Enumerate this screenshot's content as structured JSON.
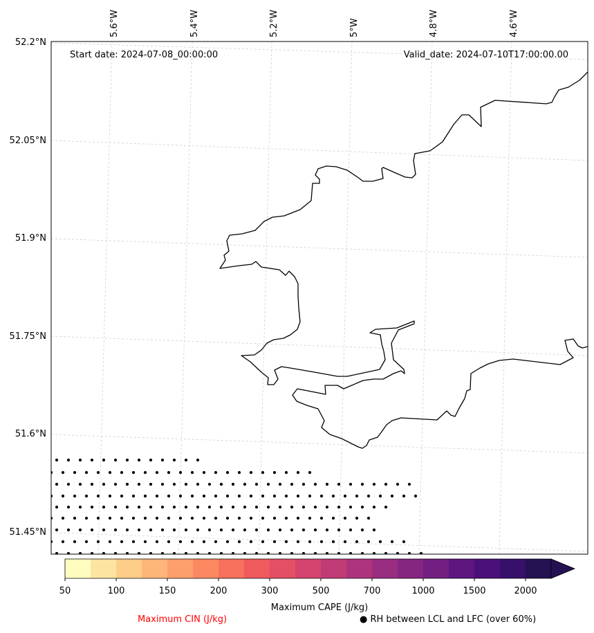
{
  "header": {
    "start_date": "Start date: 2024-07-08_00:00:00",
    "valid_date": "Valid_date: 2024-07-10T17:00:00.00"
  },
  "axes": {
    "lon_labels": [
      "5.6°W",
      "5.4°W",
      "5.2°W",
      "5°W",
      "4.8°W",
      "4.6°W"
    ],
    "lat_labels": [
      "52.2°N",
      "52.05°N",
      "51.9°N",
      "51.75°N",
      "51.6°N",
      "51.45°N"
    ]
  },
  "colorbar": {
    "label": "Maximum CAPE (J/kg)",
    "ticks": [
      "50",
      "100",
      "150",
      "200",
      "300",
      "500",
      "700",
      "1000",
      "1500",
      "2000"
    ],
    "colors": [
      "#fefdbf",
      "#fee4a1",
      "#fecd88",
      "#feb57a",
      "#fd9f6c",
      "#fb8861",
      "#f6705c",
      "#ef5a5c",
      "#e34f65",
      "#d3436e",
      "#c03b76",
      "#ad347c",
      "#992d80",
      "#852681",
      "#721f81",
      "#5d177f",
      "#4a1079",
      "#36106b",
      "#231151"
    ]
  },
  "legend": {
    "cin_label": "Maximum CIN (J/kg)",
    "cin_color": "#ff0000",
    "rh_label": "RH between LCL and LFC (over 60%)",
    "rh_marker": "●"
  },
  "colors": {
    "coastline": "#000000",
    "gridline": "#cfcfcf",
    "stipple": "#000000"
  }
}
